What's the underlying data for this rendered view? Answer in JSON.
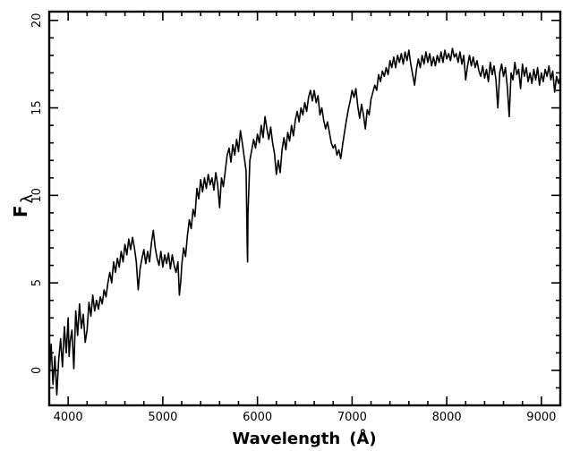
{
  "chart_data": {
    "type": "line",
    "title": "",
    "xlabel": "Wavelength",
    "xlabel_unit": "(Å)",
    "ylabel_main": "F",
    "ylabel_sub": "λ",
    "xlim": [
      3800,
      9200
    ],
    "ylim": [
      -2,
      20.5
    ],
    "x_ticks": [
      4000,
      5000,
      6000,
      7000,
      8000,
      9000
    ],
    "x_tick_labels": [
      "4000",
      "5000",
      "6000",
      "7000",
      "8000",
      "9000"
    ],
    "y_ticks": [
      0,
      5,
      10,
      15,
      20
    ],
    "y_tick_labels": [
      "0",
      "5",
      "10",
      "15",
      "20"
    ],
    "grid": false,
    "legend": "none",
    "series": [
      {
        "color": "#000000",
        "points": [
          [
            3800,
            -0.5
          ],
          [
            3820,
            1.5
          ],
          [
            3840,
            -0.8
          ],
          [
            3860,
            0.8
          ],
          [
            3880,
            -1.4
          ],
          [
            3900,
            0.6
          ],
          [
            3920,
            1.8
          ],
          [
            3940,
            0.2
          ],
          [
            3960,
            2.5
          ],
          [
            3980,
            1.0
          ],
          [
            4000,
            3.0
          ],
          [
            4010,
            0.8
          ],
          [
            4020,
            1.6
          ],
          [
            4040,
            2.3
          ],
          [
            4060,
            0.1
          ],
          [
            4080,
            3.4
          ],
          [
            4100,
            2.0
          ],
          [
            4120,
            3.8
          ],
          [
            4140,
            2.4
          ],
          [
            4160,
            3.2
          ],
          [
            4180,
            1.6
          ],
          [
            4200,
            2.3
          ],
          [
            4220,
            3.9
          ],
          [
            4240,
            3.1
          ],
          [
            4260,
            4.3
          ],
          [
            4280,
            3.4
          ],
          [
            4300,
            4.0
          ],
          [
            4320,
            3.5
          ],
          [
            4340,
            4.2
          ],
          [
            4360,
            3.8
          ],
          [
            4380,
            4.6
          ],
          [
            4400,
            4.2
          ],
          [
            4420,
            5.0
          ],
          [
            4440,
            5.6
          ],
          [
            4460,
            5.0
          ],
          [
            4480,
            6.2
          ],
          [
            4500,
            5.6
          ],
          [
            4520,
            6.4
          ],
          [
            4540,
            5.9
          ],
          [
            4560,
            6.8
          ],
          [
            4580,
            6.2
          ],
          [
            4600,
            7.2
          ],
          [
            4620,
            6.6
          ],
          [
            4640,
            7.5
          ],
          [
            4660,
            6.9
          ],
          [
            4680,
            7.6
          ],
          [
            4700,
            7.0
          ],
          [
            4720,
            6.2
          ],
          [
            4740,
            4.6
          ],
          [
            4760,
            5.8
          ],
          [
            4780,
            6.4
          ],
          [
            4800,
            6.9
          ],
          [
            4820,
            6.1
          ],
          [
            4840,
            6.8
          ],
          [
            4860,
            6.2
          ],
          [
            4880,
            7.3
          ],
          [
            4900,
            8.0
          ],
          [
            4920,
            7.0
          ],
          [
            4940,
            6.4
          ],
          [
            4960,
            6.0
          ],
          [
            4980,
            6.8
          ],
          [
            5000,
            5.9
          ],
          [
            5020,
            6.6
          ],
          [
            5040,
            6.1
          ],
          [
            5060,
            6.7
          ],
          [
            5080,
            5.8
          ],
          [
            5100,
            6.6
          ],
          [
            5120,
            6.0
          ],
          [
            5140,
            5.6
          ],
          [
            5160,
            6.2
          ],
          [
            5175,
            4.3
          ],
          [
            5190,
            5.1
          ],
          [
            5200,
            6.0
          ],
          [
            5220,
            7.0
          ],
          [
            5240,
            6.5
          ],
          [
            5260,
            7.7
          ],
          [
            5280,
            8.6
          ],
          [
            5300,
            8.1
          ],
          [
            5320,
            9.2
          ],
          [
            5340,
            8.8
          ],
          [
            5360,
            10.4
          ],
          [
            5380,
            9.8
          ],
          [
            5400,
            10.9
          ],
          [
            5420,
            10.2
          ],
          [
            5440,
            11.0
          ],
          [
            5460,
            10.4
          ],
          [
            5480,
            11.2
          ],
          [
            5500,
            10.6
          ],
          [
            5520,
            11.0
          ],
          [
            5540,
            10.3
          ],
          [
            5560,
            11.3
          ],
          [
            5580,
            10.6
          ],
          [
            5600,
            9.3
          ],
          [
            5620,
            11.0
          ],
          [
            5640,
            10.5
          ],
          [
            5660,
            11.4
          ],
          [
            5680,
            12.3
          ],
          [
            5700,
            12.7
          ],
          [
            5720,
            11.9
          ],
          [
            5740,
            12.9
          ],
          [
            5760,
            12.3
          ],
          [
            5780,
            13.2
          ],
          [
            5800,
            12.5
          ],
          [
            5820,
            13.7
          ],
          [
            5840,
            13.0
          ],
          [
            5860,
            12.2
          ],
          [
            5880,
            11.4
          ],
          [
            5892,
            7.0
          ],
          [
            5896,
            6.2
          ],
          [
            5900,
            9.0
          ],
          [
            5920,
            12.0
          ],
          [
            5940,
            12.6
          ],
          [
            5960,
            13.2
          ],
          [
            5980,
            12.7
          ],
          [
            6000,
            13.5
          ],
          [
            6020,
            13.0
          ],
          [
            6040,
            14.0
          ],
          [
            6060,
            13.3
          ],
          [
            6080,
            14.5
          ],
          [
            6100,
            13.8
          ],
          [
            6120,
            13.2
          ],
          [
            6140,
            13.9
          ],
          [
            6160,
            13.0
          ],
          [
            6180,
            12.4
          ],
          [
            6200,
            11.2
          ],
          [
            6220,
            12.0
          ],
          [
            6240,
            11.3
          ],
          [
            6260,
            12.6
          ],
          [
            6280,
            13.3
          ],
          [
            6300,
            12.6
          ],
          [
            6320,
            13.6
          ],
          [
            6340,
            13.1
          ],
          [
            6360,
            14.0
          ],
          [
            6380,
            13.4
          ],
          [
            6400,
            14.3
          ],
          [
            6420,
            14.8
          ],
          [
            6440,
            14.2
          ],
          [
            6460,
            15.0
          ],
          [
            6480,
            14.6
          ],
          [
            6500,
            15.3
          ],
          [
            6520,
            14.8
          ],
          [
            6540,
            15.6
          ],
          [
            6560,
            16.0
          ],
          [
            6580,
            15.4
          ],
          [
            6600,
            16.0
          ],
          [
            6620,
            15.3
          ],
          [
            6640,
            15.7
          ],
          [
            6660,
            14.6
          ],
          [
            6680,
            15.0
          ],
          [
            6700,
            14.3
          ],
          [
            6720,
            13.8
          ],
          [
            6740,
            14.2
          ],
          [
            6760,
            13.6
          ],
          [
            6780,
            13.0
          ],
          [
            6800,
            12.7
          ],
          [
            6820,
            12.9
          ],
          [
            6840,
            12.3
          ],
          [
            6860,
            12.6
          ],
          [
            6880,
            12.1
          ],
          [
            6900,
            12.9
          ],
          [
            6920,
            13.6
          ],
          [
            6940,
            14.3
          ],
          [
            6960,
            14.9
          ],
          [
            6980,
            15.4
          ],
          [
            7000,
            16.0
          ],
          [
            7020,
            15.6
          ],
          [
            7040,
            16.1
          ],
          [
            7060,
            15.1
          ],
          [
            7080,
            14.4
          ],
          [
            7100,
            15.2
          ],
          [
            7120,
            14.6
          ],
          [
            7140,
            13.8
          ],
          [
            7160,
            14.9
          ],
          [
            7180,
            14.6
          ],
          [
            7200,
            15.5
          ],
          [
            7220,
            15.9
          ],
          [
            7240,
            16.3
          ],
          [
            7260,
            16.0
          ],
          [
            7280,
            16.9
          ],
          [
            7300,
            16.5
          ],
          [
            7320,
            17.1
          ],
          [
            7340,
            16.8
          ],
          [
            7360,
            17.3
          ],
          [
            7380,
            16.9
          ],
          [
            7400,
            17.7
          ],
          [
            7420,
            17.3
          ],
          [
            7440,
            17.9
          ],
          [
            7460,
            17.3
          ],
          [
            7480,
            18.0
          ],
          [
            7500,
            17.6
          ],
          [
            7520,
            18.1
          ],
          [
            7540,
            17.5
          ],
          [
            7560,
            18.2
          ],
          [
            7580,
            17.7
          ],
          [
            7600,
            18.3
          ],
          [
            7620,
            17.5
          ],
          [
            7640,
            16.9
          ],
          [
            7660,
            16.3
          ],
          [
            7680,
            17.2
          ],
          [
            7700,
            17.8
          ],
          [
            7720,
            17.3
          ],
          [
            7740,
            18.0
          ],
          [
            7760,
            17.5
          ],
          [
            7780,
            18.2
          ],
          [
            7800,
            17.6
          ],
          [
            7820,
            18.1
          ],
          [
            7840,
            17.4
          ],
          [
            7860,
            17.9
          ],
          [
            7880,
            17.4
          ],
          [
            7900,
            18.0
          ],
          [
            7920,
            17.6
          ],
          [
            7940,
            18.2
          ],
          [
            7960,
            17.6
          ],
          [
            7980,
            18.3
          ],
          [
            8000,
            17.8
          ],
          [
            8020,
            18.1
          ],
          [
            8040,
            17.7
          ],
          [
            8060,
            18.4
          ],
          [
            8080,
            17.9
          ],
          [
            8100,
            18.1
          ],
          [
            8120,
            17.6
          ],
          [
            8140,
            18.2
          ],
          [
            8160,
            17.5
          ],
          [
            8180,
            18.0
          ],
          [
            8200,
            16.6
          ],
          [
            8220,
            17.4
          ],
          [
            8240,
            18.0
          ],
          [
            8260,
            17.4
          ],
          [
            8280,
            17.9
          ],
          [
            8300,
            17.3
          ],
          [
            8320,
            17.7
          ],
          [
            8340,
            17.1
          ],
          [
            8360,
            16.8
          ],
          [
            8380,
            17.4
          ],
          [
            8400,
            16.7
          ],
          [
            8420,
            17.2
          ],
          [
            8440,
            16.5
          ],
          [
            8460,
            17.6
          ],
          [
            8480,
            16.9
          ],
          [
            8500,
            17.4
          ],
          [
            8520,
            16.6
          ],
          [
            8540,
            15.0
          ],
          [
            8560,
            17.0
          ],
          [
            8580,
            17.5
          ],
          [
            8600,
            16.8
          ],
          [
            8620,
            17.3
          ],
          [
            8640,
            16.2
          ],
          [
            8660,
            14.5
          ],
          [
            8680,
            17.0
          ],
          [
            8700,
            16.6
          ],
          [
            8720,
            17.6
          ],
          [
            8740,
            16.9
          ],
          [
            8760,
            17.2
          ],
          [
            8780,
            16.1
          ],
          [
            8800,
            17.5
          ],
          [
            8820,
            16.8
          ],
          [
            8840,
            17.3
          ],
          [
            8860,
            16.5
          ],
          [
            8880,
            17.0
          ],
          [
            8900,
            16.4
          ],
          [
            8920,
            17.2
          ],
          [
            8940,
            16.6
          ],
          [
            8960,
            17.3
          ],
          [
            8980,
            16.3
          ],
          [
            9000,
            17.0
          ],
          [
            9020,
            16.5
          ],
          [
            9040,
            17.2
          ],
          [
            9060,
            16.8
          ],
          [
            9080,
            17.4
          ],
          [
            9100,
            16.6
          ],
          [
            9120,
            17.1
          ],
          [
            9140,
            15.9
          ],
          [
            9160,
            16.8
          ],
          [
            9180,
            16.4
          ],
          [
            9200,
            16.8
          ]
        ]
      }
    ]
  }
}
